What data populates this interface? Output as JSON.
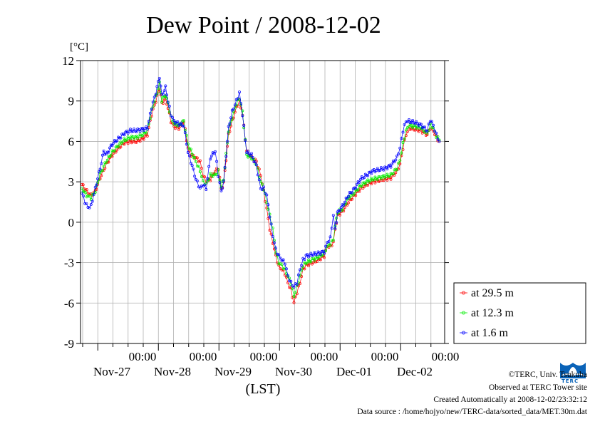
{
  "chart_data": {
    "type": "line",
    "title": "Dew Point / 2008-12-02",
    "unit_label": "[°C]",
    "xlabel": "(LST)",
    "ylim": [
      -9,
      12
    ],
    "y_ticks": [
      12,
      9,
      6,
      3,
      0,
      -3,
      -6,
      -9
    ],
    "x_range_days": [
      0,
      6
    ],
    "day_ticks": [
      {
        "time": "00:00",
        "date": "Nov-27"
      },
      {
        "time": "00:00",
        "date": "Nov-28"
      },
      {
        "time": "00:00",
        "date": "Nov-29"
      },
      {
        "time": "00:00",
        "date": "Nov-30"
      },
      {
        "time": "00:00",
        "date": "Dec-01"
      },
      {
        "time": "00:00",
        "date": "Dec-02"
      }
    ],
    "legend_position": "right",
    "grid": true,
    "series": [
      {
        "name": "at 29.5 m",
        "color": "#ff0000",
        "points": [
          [
            0.0,
            2.8
          ],
          [
            0.08,
            2.3
          ],
          [
            0.15,
            2.0
          ],
          [
            0.22,
            2.3
          ],
          [
            0.3,
            3.3
          ],
          [
            0.4,
            4.3
          ],
          [
            0.5,
            5.0
          ],
          [
            0.6,
            5.5
          ],
          [
            0.7,
            5.9
          ],
          [
            0.8,
            6.0
          ],
          [
            0.9,
            6.0
          ],
          [
            1.0,
            6.2
          ],
          [
            1.08,
            6.5
          ],
          [
            1.15,
            8.0
          ],
          [
            1.22,
            9.0
          ],
          [
            1.28,
            10.0
          ],
          [
            1.32,
            8.8
          ],
          [
            1.38,
            9.2
          ],
          [
            1.42,
            8.5
          ],
          [
            1.47,
            7.5
          ],
          [
            1.52,
            7.1
          ],
          [
            1.6,
            7.0
          ],
          [
            1.68,
            7.5
          ],
          [
            1.75,
            5.5
          ],
          [
            1.8,
            5.0
          ],
          [
            1.88,
            4.8
          ],
          [
            1.95,
            4.5
          ],
          [
            2.0,
            3.5
          ],
          [
            2.05,
            3.0
          ],
          [
            2.12,
            3.2
          ],
          [
            2.2,
            3.8
          ],
          [
            2.25,
            4.0
          ],
          [
            2.3,
            2.5
          ],
          [
            2.34,
            2.9
          ],
          [
            2.42,
            6.5
          ],
          [
            2.48,
            7.5
          ],
          [
            2.55,
            8.5
          ],
          [
            2.6,
            9.0
          ],
          [
            2.65,
            8.0
          ],
          [
            2.72,
            5.3
          ],
          [
            2.8,
            4.8
          ],
          [
            2.88,
            4.5
          ],
          [
            2.95,
            3.5
          ],
          [
            3.0,
            2.3
          ],
          [
            3.05,
            1.0
          ],
          [
            3.1,
            -0.5
          ],
          [
            3.15,
            -1.5
          ],
          [
            3.2,
            -2.5
          ],
          [
            3.25,
            -3.3
          ],
          [
            3.3,
            -3.5
          ],
          [
            3.35,
            -3.8
          ],
          [
            3.4,
            -4.5
          ],
          [
            3.45,
            -5.0
          ],
          [
            3.5,
            -6.0
          ],
          [
            3.55,
            -5.2
          ],
          [
            3.6,
            -4.5
          ],
          [
            3.65,
            -3.5
          ],
          [
            3.7,
            -3.2
          ],
          [
            3.8,
            -3.0
          ],
          [
            3.9,
            -2.8
          ],
          [
            4.0,
            -2.5
          ],
          [
            4.05,
            -1.8
          ],
          [
            4.1,
            -1.8
          ],
          [
            4.15,
            -1.5
          ],
          [
            4.18,
            -0.5
          ],
          [
            4.22,
            0.5
          ],
          [
            4.3,
            0.8
          ],
          [
            4.4,
            1.5
          ],
          [
            4.5,
            2.0
          ],
          [
            4.6,
            2.5
          ],
          [
            4.7,
            2.8
          ],
          [
            4.8,
            3.0
          ],
          [
            4.9,
            3.1
          ],
          [
            5.0,
            3.2
          ],
          [
            5.1,
            3.3
          ],
          [
            5.2,
            3.8
          ],
          [
            5.25,
            4.3
          ],
          [
            5.3,
            5.5
          ],
          [
            5.35,
            6.5
          ],
          [
            5.4,
            7.0
          ],
          [
            5.5,
            6.9
          ],
          [
            5.6,
            6.8
          ],
          [
            5.7,
            6.5
          ],
          [
            5.75,
            7.0
          ],
          [
            5.8,
            6.8
          ],
          [
            5.85,
            6.3
          ],
          [
            5.9,
            6.0
          ]
        ]
      },
      {
        "name": "at 12.3 m",
        "color": "#00ee00",
        "points": [
          [
            0.0,
            2.5
          ],
          [
            0.08,
            2.0
          ],
          [
            0.15,
            1.8
          ],
          [
            0.22,
            2.3
          ],
          [
            0.3,
            3.6
          ],
          [
            0.4,
            4.5
          ],
          [
            0.5,
            5.2
          ],
          [
            0.6,
            5.7
          ],
          [
            0.7,
            6.1
          ],
          [
            0.8,
            6.3
          ],
          [
            0.9,
            6.3
          ],
          [
            1.0,
            6.5
          ],
          [
            1.08,
            6.8
          ],
          [
            1.15,
            8.3
          ],
          [
            1.22,
            9.3
          ],
          [
            1.28,
            10.3
          ],
          [
            1.32,
            9.0
          ],
          [
            1.38,
            9.5
          ],
          [
            1.42,
            8.8
          ],
          [
            1.47,
            7.8
          ],
          [
            1.52,
            7.3
          ],
          [
            1.6,
            7.2
          ],
          [
            1.68,
            7.5
          ],
          [
            1.75,
            5.8
          ],
          [
            1.8,
            5.3
          ],
          [
            1.88,
            4.5
          ],
          [
            1.95,
            3.8
          ],
          [
            2.0,
            3.0
          ],
          [
            2.05,
            2.8
          ],
          [
            2.12,
            3.5
          ],
          [
            2.2,
            3.5
          ],
          [
            2.25,
            3.8
          ],
          [
            2.3,
            2.6
          ],
          [
            2.34,
            3.2
          ],
          [
            2.42,
            6.8
          ],
          [
            2.48,
            7.8
          ],
          [
            2.55,
            8.8
          ],
          [
            2.6,
            9.2
          ],
          [
            2.65,
            8.2
          ],
          [
            2.72,
            5.0
          ],
          [
            2.8,
            4.8
          ],
          [
            2.88,
            4.3
          ],
          [
            2.95,
            3.0
          ],
          [
            3.0,
            2.5
          ],
          [
            3.05,
            1.5
          ],
          [
            3.1,
            0.5
          ],
          [
            3.15,
            -0.5
          ],
          [
            3.2,
            -2.2
          ],
          [
            3.25,
            -3.0
          ],
          [
            3.3,
            -3.2
          ],
          [
            3.35,
            -3.5
          ],
          [
            3.4,
            -4.0
          ],
          [
            3.45,
            -4.5
          ],
          [
            3.5,
            -5.5
          ],
          [
            3.55,
            -4.8
          ],
          [
            3.6,
            -4.0
          ],
          [
            3.65,
            -3.2
          ],
          [
            3.7,
            -3.0
          ],
          [
            3.8,
            -2.8
          ],
          [
            3.9,
            -2.6
          ],
          [
            4.0,
            -2.3
          ],
          [
            4.05,
            -1.8
          ],
          [
            4.1,
            -1.6
          ],
          [
            4.15,
            -1.3
          ],
          [
            4.18,
            -0.3
          ],
          [
            4.22,
            0.7
          ],
          [
            4.3,
            1.0
          ],
          [
            4.4,
            1.8
          ],
          [
            4.5,
            2.2
          ],
          [
            4.6,
            2.7
          ],
          [
            4.7,
            3.0
          ],
          [
            4.8,
            3.2
          ],
          [
            4.9,
            3.3
          ],
          [
            5.0,
            3.4
          ],
          [
            5.1,
            3.5
          ],
          [
            5.2,
            4.0
          ],
          [
            5.25,
            4.6
          ],
          [
            5.3,
            5.8
          ],
          [
            5.35,
            6.8
          ],
          [
            5.4,
            7.2
          ],
          [
            5.5,
            7.1
          ],
          [
            5.6,
            7.0
          ],
          [
            5.7,
            6.6
          ],
          [
            5.75,
            7.2
          ],
          [
            5.8,
            7.0
          ],
          [
            5.85,
            6.4
          ],
          [
            5.9,
            6.1
          ]
        ]
      },
      {
        "name": "at 1.6 m",
        "color": "#0000ff",
        "points": [
          [
            0.0,
            2.2
          ],
          [
            0.05,
            1.5
          ],
          [
            0.1,
            1.1
          ],
          [
            0.15,
            1.2
          ],
          [
            0.22,
            2.5
          ],
          [
            0.3,
            4.0
          ],
          [
            0.36,
            5.3
          ],
          [
            0.4,
            5.0
          ],
          [
            0.5,
            5.8
          ],
          [
            0.6,
            6.2
          ],
          [
            0.7,
            6.6
          ],
          [
            0.8,
            6.8
          ],
          [
            0.9,
            6.8
          ],
          [
            1.0,
            6.9
          ],
          [
            1.08,
            7.0
          ],
          [
            1.15,
            8.5
          ],
          [
            1.22,
            9.6
          ],
          [
            1.28,
            10.8
          ],
          [
            1.32,
            9.4
          ],
          [
            1.38,
            10.0
          ],
          [
            1.42,
            9.0
          ],
          [
            1.47,
            8.0
          ],
          [
            1.52,
            7.5
          ],
          [
            1.6,
            7.3
          ],
          [
            1.68,
            7.2
          ],
          [
            1.75,
            5.2
          ],
          [
            1.8,
            4.5
          ],
          [
            1.88,
            3.2
          ],
          [
            1.95,
            2.5
          ],
          [
            2.0,
            2.8
          ],
          [
            2.05,
            2.5
          ],
          [
            2.12,
            4.8
          ],
          [
            2.2,
            5.3
          ],
          [
            2.25,
            3.5
          ],
          [
            2.3,
            2.3
          ],
          [
            2.34,
            3.0
          ],
          [
            2.42,
            7.0
          ],
          [
            2.48,
            8.2
          ],
          [
            2.55,
            9.0
          ],
          [
            2.6,
            9.6
          ],
          [
            2.65,
            8.0
          ],
          [
            2.72,
            5.2
          ],
          [
            2.8,
            5.0
          ],
          [
            2.88,
            4.2
          ],
          [
            2.95,
            2.5
          ],
          [
            3.0,
            2.5
          ],
          [
            3.05,
            2.0
          ],
          [
            3.1,
            0.5
          ],
          [
            3.15,
            -1.0
          ],
          [
            3.2,
            -2.0
          ],
          [
            3.25,
            -2.5
          ],
          [
            3.3,
            -2.8
          ],
          [
            3.35,
            -3.0
          ],
          [
            3.4,
            -4.0
          ],
          [
            3.45,
            -4.5
          ],
          [
            3.5,
            -4.8
          ],
          [
            3.55,
            -4.5
          ],
          [
            3.6,
            -3.5
          ],
          [
            3.65,
            -2.8
          ],
          [
            3.7,
            -2.5
          ],
          [
            3.8,
            -2.4
          ],
          [
            3.9,
            -2.3
          ],
          [
            4.0,
            -2.2
          ],
          [
            4.05,
            -1.5
          ],
          [
            4.1,
            -1.2
          ],
          [
            4.15,
            0.5
          ],
          [
            4.18,
            -0.5
          ],
          [
            4.22,
            0.7
          ],
          [
            4.3,
            1.2
          ],
          [
            4.4,
            2.0
          ],
          [
            4.5,
            2.5
          ],
          [
            4.6,
            3.2
          ],
          [
            4.7,
            3.5
          ],
          [
            4.8,
            3.8
          ],
          [
            4.9,
            3.9
          ],
          [
            5.0,
            4.0
          ],
          [
            5.1,
            4.2
          ],
          [
            5.2,
            4.8
          ],
          [
            5.25,
            5.5
          ],
          [
            5.3,
            6.8
          ],
          [
            5.35,
            7.5
          ],
          [
            5.4,
            7.5
          ],
          [
            5.5,
            7.4
          ],
          [
            5.6,
            7.2
          ],
          [
            5.7,
            6.8
          ],
          [
            5.75,
            7.6
          ],
          [
            5.8,
            7.2
          ],
          [
            5.85,
            6.5
          ],
          [
            5.9,
            6.0
          ]
        ]
      }
    ]
  },
  "credits": {
    "copyright": "©TERC, Univ. Tsukuba",
    "observed": "Observed at TERC Tower site",
    "created": "Created Automatically at 2008-12-02/23:32:12",
    "source": "Data source : /home/hojyo/new/TERC-data/sorted_data/MET.30m.dat",
    "logo_text": "TERC",
    "logo_color": "#0a63b8"
  }
}
